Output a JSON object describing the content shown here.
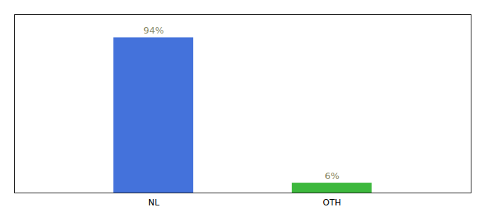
{
  "chart_data": {
    "type": "bar",
    "categories": [
      "NL",
      "OTH"
    ],
    "values": [
      94,
      6
    ],
    "colors": [
      "#4472db",
      "#3db83d"
    ],
    "value_labels": [
      "94%",
      "6%"
    ],
    "data_labels": true,
    "ylim": [
      0,
      108
    ],
    "yticks": [],
    "tick_labels": "x",
    "grid": false
  }
}
